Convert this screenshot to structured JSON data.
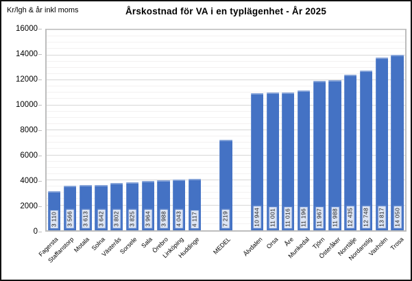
{
  "chart_data": {
    "type": "bar",
    "title": "Årskostnad för VA i en typlägenhet - År 2025",
    "ylabel": "Kr/lgh & år inkl moms",
    "xlabel": "",
    "ylim": [
      0,
      16000
    ],
    "ytick_interval": 2000,
    "yminor_interval": 500,
    "yticks": [
      0,
      2000,
      4000,
      6000,
      8000,
      10000,
      12000,
      14000,
      16000
    ],
    "grid": true,
    "legend": false,
    "bar_color": "#4472C4",
    "value_label_bg": "#dce4f3",
    "value_label_border": "#4472C4",
    "bars": [
      {
        "label": "Fagersta",
        "value": 3110,
        "value_label": "3 110"
      },
      {
        "label": "Staffanstorp",
        "value": 3566,
        "value_label": "3 566"
      },
      {
        "label": "Motala",
        "value": 3613,
        "value_label": "3 613"
      },
      {
        "label": "Solna",
        "value": 3642,
        "value_label": "3 642"
      },
      {
        "label": "Västerås",
        "value": 3802,
        "value_label": "3 802"
      },
      {
        "label": "Sorsele",
        "value": 3825,
        "value_label": "3 825"
      },
      {
        "label": "Sala",
        "value": 3964,
        "value_label": "3 964"
      },
      {
        "label": "Örebro",
        "value": 3988,
        "value_label": "3 988"
      },
      {
        "label": "Linköping",
        "value": 4043,
        "value_label": "4 043"
      },
      {
        "label": "Huddinge",
        "value": 4117,
        "value_label": "4 117"
      },
      {
        "label": "",
        "value": null,
        "value_label": ""
      },
      {
        "label": "MEDEL",
        "value": 7219,
        "value_label": "7 219"
      },
      {
        "label": "",
        "value": null,
        "value_label": ""
      },
      {
        "label": "Älvdalen",
        "value": 10944,
        "value_label": "10 944"
      },
      {
        "label": "Orsa",
        "value": 11001,
        "value_label": "11 001"
      },
      {
        "label": "Åre",
        "value": 11016,
        "value_label": "11 016"
      },
      {
        "label": "Munkedal",
        "value": 11196,
        "value_label": "11 196"
      },
      {
        "label": "Tjörn",
        "value": 11967,
        "value_label": "11 967"
      },
      {
        "label": "Österåker",
        "value": 11988,
        "value_label": "11 988"
      },
      {
        "label": "Norrtälje",
        "value": 12435,
        "value_label": "12 435"
      },
      {
        "label": "Nordanstig",
        "value": 12748,
        "value_label": "12 748"
      },
      {
        "label": "Vaxholm",
        "value": 13817,
        "value_label": "13 817"
      },
      {
        "label": "Trosa",
        "value": 14050,
        "value_label": "14 050"
      }
    ]
  }
}
